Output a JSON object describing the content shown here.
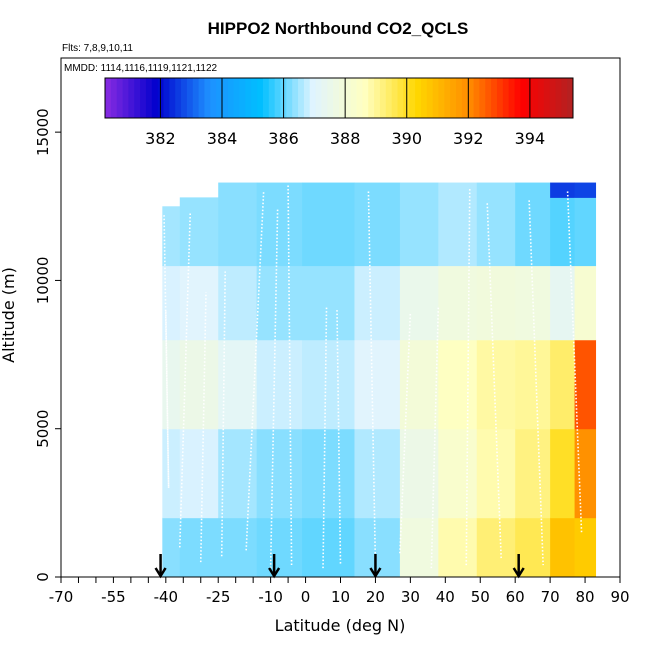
{
  "chart_data": {
    "type": "heatmap",
    "title": "HIPPO2 Northbound CO2_QCLS",
    "subtitle_flights": "Flts: 7,8,9,10,11",
    "subtitle_dates": "MMDD: 1114,1116,1119,1121,1122",
    "xlabel": "Latitude (deg N)",
    "ylabel": "Altitude (m)",
    "xlim": [
      -70,
      90
    ],
    "ylim": [
      0,
      17500
    ],
    "x_ticks": [
      -70,
      -55,
      -40,
      -25,
      -10,
      0,
      10,
      20,
      30,
      40,
      50,
      60,
      70,
      80,
      90
    ],
    "x_tick_labels": [
      "-70",
      "-55",
      "-40",
      "-25",
      "-10",
      "0",
      "10",
      "20",
      "30",
      "40",
      "50",
      "60",
      "70",
      "80",
      "90"
    ],
    "x_minor_ticks": [
      -65,
      -60,
      -50,
      -45,
      -35,
      -30,
      -20,
      -15,
      -5
    ],
    "y_ticks": [
      0,
      5000,
      10000,
      15000
    ],
    "y_tick_labels": [
      "0",
      "5000",
      "10000",
      "15000"
    ],
    "colorbar": {
      "min": 380.2,
      "max": 395.4,
      "ticks": [
        382,
        384,
        386,
        388,
        390,
        392,
        394
      ],
      "tick_labels": [
        "382",
        "384",
        "386",
        "388",
        "390",
        "392",
        "394"
      ],
      "colors": [
        "#8a2be2",
        "#0000cd",
        "#1e90ff",
        "#00bfff",
        "#e0f4ff",
        "#ffffc0",
        "#ffd700",
        "#ff8c00",
        "#ff0000",
        "#b22222"
      ]
    },
    "arrows_latitude": [
      -41.5,
      -9.0,
      20.0,
      61.0
    ],
    "columns": [
      {
        "x0": -41,
        "x1": -36,
        "ytop": 12500,
        "cells": [
          [
            0,
            2000,
            386.3
          ],
          [
            2000,
            5000,
            386.8
          ],
          [
            5000,
            8000,
            387.4
          ],
          [
            8000,
            10500,
            386.9
          ],
          [
            10500,
            12500,
            386.5
          ]
        ]
      },
      {
        "x0": -36,
        "x1": -25,
        "ytop": 12800,
        "cells": [
          [
            0,
            2000,
            386.2
          ],
          [
            2000,
            5000,
            386.9
          ],
          [
            5000,
            8000,
            387.6
          ],
          [
            8000,
            10500,
            387.0
          ],
          [
            10500,
            12800,
            386.4
          ]
        ]
      },
      {
        "x0": -25,
        "x1": -14,
        "ytop": 13300,
        "cells": [
          [
            0,
            2000,
            386.2
          ],
          [
            2000,
            5000,
            386.5
          ],
          [
            5000,
            8000,
            387.2
          ],
          [
            8000,
            10500,
            386.7
          ],
          [
            10500,
            13300,
            386.3
          ]
        ]
      },
      {
        "x0": -14,
        "x1": -1,
        "ytop": 13300,
        "cells": [
          [
            0,
            2000,
            386.1
          ],
          [
            2000,
            5000,
            386.3
          ],
          [
            5000,
            8000,
            386.8
          ],
          [
            8000,
            10500,
            386.4
          ],
          [
            10500,
            13300,
            386.2
          ]
        ]
      },
      {
        "x0": -1,
        "x1": 14,
        "ytop": 13300,
        "cells": [
          [
            0,
            2000,
            386.0
          ],
          [
            2000,
            5000,
            386.2
          ],
          [
            5000,
            8000,
            386.7
          ],
          [
            8000,
            10500,
            386.4
          ],
          [
            10500,
            13300,
            386.1
          ]
        ]
      },
      {
        "x0": 14,
        "x1": 27,
        "ytop": 13300,
        "cells": [
          [
            0,
            2000,
            386.3
          ],
          [
            2000,
            5000,
            386.6
          ],
          [
            5000,
            8000,
            387.0
          ],
          [
            8000,
            10500,
            386.8
          ],
          [
            10500,
            13300,
            386.2
          ]
        ]
      },
      {
        "x0": 27,
        "x1": 38,
        "ytop": 13300,
        "cells": [
          [
            0,
            2000,
            387.8
          ],
          [
            2000,
            5000,
            387.6
          ],
          [
            5000,
            8000,
            388.0
          ],
          [
            8000,
            10500,
            387.5
          ],
          [
            10500,
            13300,
            386.4
          ]
        ]
      },
      {
        "x0": 38,
        "x1": 49,
        "ytop": 13300,
        "cells": [
          [
            0,
            2000,
            388.8
          ],
          [
            2000,
            5000,
            388.3
          ],
          [
            5000,
            8000,
            388.6
          ],
          [
            8000,
            10500,
            387.8
          ],
          [
            10500,
            13300,
            386.6
          ]
        ]
      },
      {
        "x0": 49,
        "x1": 60,
        "ytop": 13300,
        "cells": [
          [
            0,
            2000,
            389.3
          ],
          [
            2000,
            5000,
            388.8
          ],
          [
            5000,
            8000,
            388.9
          ],
          [
            8000,
            10500,
            387.9
          ],
          [
            10500,
            13300,
            386.4
          ]
        ]
      },
      {
        "x0": 60,
        "x1": 70,
        "ytop": 13300,
        "cells": [
          [
            0,
            2000,
            389.6
          ],
          [
            2000,
            5000,
            389.2
          ],
          [
            5000,
            8000,
            389.0
          ],
          [
            8000,
            10500,
            387.8
          ],
          [
            10500,
            13300,
            386.1
          ]
        ]
      },
      {
        "x0": 70,
        "x1": 77,
        "ytop": 13300,
        "cells": [
          [
            0,
            2000,
            390.8
          ],
          [
            2000,
            5000,
            390.0
          ],
          [
            5000,
            8000,
            389.4
          ],
          [
            8000,
            10500,
            387.3
          ],
          [
            10500,
            12800,
            385.9
          ],
          [
            12800,
            13300,
            382.6
          ]
        ]
      },
      {
        "x0": 77,
        "x1": 83,
        "ytop": 13300,
        "cells": [
          [
            0,
            2000,
            390.6
          ],
          [
            2000,
            5000,
            391.9
          ],
          [
            5000,
            8000,
            392.7
          ],
          [
            8000,
            10500,
            388.2
          ],
          [
            10500,
            12800,
            386.0
          ],
          [
            12800,
            13300,
            382.7
          ]
        ]
      }
    ],
    "profiles": [
      {
        "x": [
          -40.5,
          -39.2,
          -40.0
        ],
        "y": [
          12200,
          3000,
          9000
        ]
      },
      {
        "x": [
          -36.0,
          -33.0
        ],
        "y": [
          1000,
          12300
        ]
      },
      {
        "x": [
          -30.0,
          -28.5
        ],
        "y": [
          500,
          9600
        ]
      },
      {
        "x": [
          -24.0,
          -23.0
        ],
        "y": [
          700,
          10300
        ]
      },
      {
        "x": [
          -17.0,
          -12.0
        ],
        "y": [
          900,
          13000
        ]
      },
      {
        "x": [
          -10.0,
          -8.0
        ],
        "y": [
          300,
          12400
        ]
      },
      {
        "x": [
          -5.0,
          -4.0
        ],
        "y": [
          13200,
          400
        ]
      },
      {
        "x": [
          5.0,
          6.0
        ],
        "y": [
          300,
          9100
        ]
      },
      {
        "x": [
          9.0,
          10.0
        ],
        "y": [
          9000,
          400
        ]
      },
      {
        "x": [
          18.0,
          20.0
        ],
        "y": [
          13000,
          400
        ]
      },
      {
        "x": [
          27.0,
          30.0
        ],
        "y": [
          800,
          8900
        ]
      },
      {
        "x": [
          36.0,
          38.0
        ],
        "y": [
          300,
          9100
        ]
      },
      {
        "x": [
          46.0,
          47.0
        ],
        "y": [
          400,
          13100
        ]
      },
      {
        "x": [
          52.0,
          56.0
        ],
        "y": [
          12600,
          600
        ]
      },
      {
        "x": [
          64.0,
          68.0
        ],
        "y": [
          12700,
          400
        ]
      },
      {
        "x": [
          75.0,
          79.0
        ],
        "y": [
          13000,
          1500
        ]
      }
    ]
  }
}
